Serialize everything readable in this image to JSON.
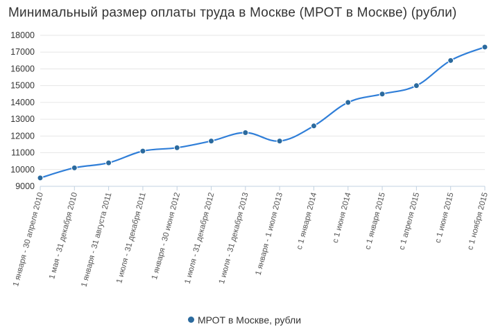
{
  "chart_data": {
    "type": "line",
    "title": "Минимальный размер оплаты труда в Москве (МРОТ в Москве) (рубли)",
    "xlabel": "",
    "ylabel": "",
    "categories": [
      "1 января - 30 апреля 2010",
      "1 мая - 31 декабря 2010",
      "1 января - 31 августа 2011",
      "1 июля - 31 декабря 2011",
      "1 января - 30 июня 2012",
      "1 июля - 31 декабря 2012",
      "1 июля - 31 декабря 2013",
      "1 января - 1 июля 2013",
      "с 1 января 2014",
      "с 1 июня 2014",
      "с 1 января 2015",
      "с 1 апреля 2015",
      "с 1 июня 2015",
      "с 1 ноября 2015"
    ],
    "series": [
      {
        "name": "МРОТ в Москве, рубли",
        "values": [
          9500,
          10100,
          10400,
          11100,
          11300,
          11700,
          12200,
          11700,
          12600,
          14000,
          14500,
          15000,
          16500,
          17300
        ]
      }
    ],
    "ylim": [
      9000,
      18000
    ],
    "yticks": [
      9000,
      10000,
      11000,
      12000,
      13000,
      14000,
      15000,
      16000,
      17000,
      18000
    ],
    "grid": true,
    "legend_position": "bottom-center",
    "colors": {
      "line": "#2f7ed8",
      "marker": "#2b6a9e",
      "grid": "#e6e6e6",
      "text": "#333333"
    }
  }
}
